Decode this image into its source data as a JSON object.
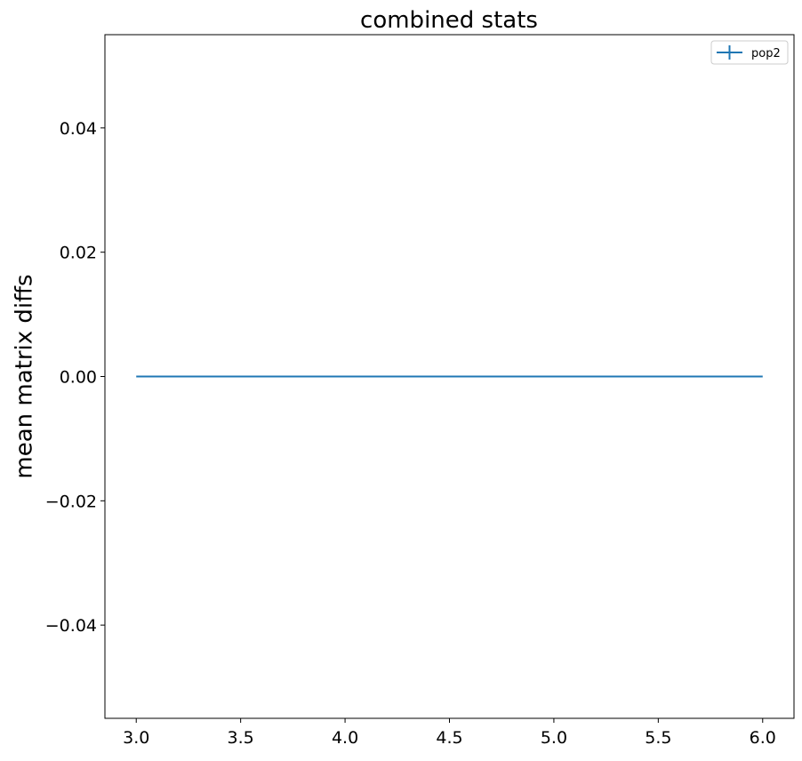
{
  "chart_data": {
    "type": "line",
    "title": "combined stats",
    "xlabel": "",
    "ylabel": "mean matrix diffs",
    "xlim": [
      2.85,
      6.15
    ],
    "ylim": [
      -0.055,
      0.055
    ],
    "xticks": [
      3.0,
      3.5,
      4.0,
      4.5,
      5.0,
      5.5,
      6.0
    ],
    "xtick_labels": [
      "3.0",
      "3.5",
      "4.0",
      "4.5",
      "5.0",
      "5.5",
      "6.0"
    ],
    "yticks": [
      -0.04,
      -0.02,
      0.0,
      0.02,
      0.04
    ],
    "ytick_labels": [
      "−0.04",
      "−0.02",
      "0.00",
      "0.02",
      "0.04"
    ],
    "grid": false,
    "legend_position": "top-right",
    "series": [
      {
        "name": "pop2",
        "color": "#1f77b4",
        "error_bars": true,
        "x": [
          3,
          4,
          5,
          6
        ],
        "y": [
          0,
          0,
          0,
          0
        ],
        "yerr": [
          0,
          0,
          0,
          0
        ]
      }
    ]
  }
}
